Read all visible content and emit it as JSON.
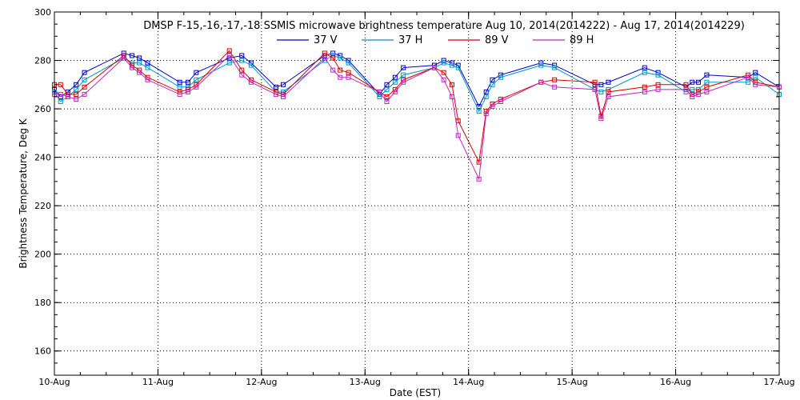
{
  "chart_data": {
    "type": "line",
    "title": "DMSP F-15,-16,-17,-18 SSMIS microwave brightness temperature Aug 10, 2014(2014222) - Aug 17, 2014(2014229)",
    "xlabel": "Date (EST)",
    "ylabel": "Brightness Temperature, Deg K",
    "ylim": [
      150,
      300
    ],
    "xlim": [
      0,
      7
    ],
    "yticks": [
      160,
      180,
      200,
      220,
      240,
      260,
      280,
      300
    ],
    "xticks": [
      {
        "value": 0,
        "label": "10-Aug"
      },
      {
        "value": 1,
        "label": "11-Aug"
      },
      {
        "value": 2,
        "label": "12-Aug"
      },
      {
        "value": 3,
        "label": "13-Aug"
      },
      {
        "value": 4,
        "label": "14-Aug"
      },
      {
        "value": 5,
        "label": "15-Aug"
      },
      {
        "value": 6,
        "label": "16-Aug"
      },
      {
        "value": 7,
        "label": "17-Aug"
      }
    ],
    "grid": true,
    "legend_position": "top",
    "series": [
      {
        "name": "37 V",
        "color": "#0000c8",
        "points": [
          [
            0.0,
            268
          ],
          [
            0.06,
            265
          ],
          [
            0.13,
            267
          ],
          [
            0.21,
            270
          ],
          [
            0.29,
            275
          ],
          [
            0.67,
            283
          ],
          [
            0.75,
            282
          ],
          [
            0.82,
            281
          ],
          [
            0.9,
            279
          ],
          [
            1.21,
            271
          ],
          [
            1.29,
            271
          ],
          [
            1.37,
            275
          ],
          [
            1.69,
            281
          ],
          [
            1.81,
            282
          ],
          [
            1.9,
            279
          ],
          [
            2.14,
            269
          ],
          [
            2.21,
            270
          ],
          [
            2.61,
            282
          ],
          [
            2.69,
            283
          ],
          [
            2.76,
            282
          ],
          [
            2.84,
            280
          ],
          [
            3.14,
            266
          ],
          [
            3.21,
            270
          ],
          [
            3.29,
            273
          ],
          [
            3.37,
            277
          ],
          [
            3.67,
            278
          ],
          [
            3.76,
            280
          ],
          [
            3.84,
            279
          ],
          [
            3.9,
            278
          ],
          [
            4.1,
            261
          ],
          [
            4.17,
            267
          ],
          [
            4.23,
            272
          ],
          [
            4.31,
            274
          ],
          [
            4.7,
            279
          ],
          [
            4.83,
            278
          ],
          [
            5.22,
            270
          ],
          [
            5.28,
            270
          ],
          [
            5.35,
            271
          ],
          [
            5.7,
            277
          ],
          [
            5.83,
            275
          ],
          [
            6.1,
            269
          ],
          [
            6.16,
            271
          ],
          [
            6.22,
            271
          ],
          [
            6.3,
            274
          ],
          [
            6.7,
            273
          ],
          [
            6.77,
            275
          ],
          [
            7.0,
            269
          ]
        ]
      },
      {
        "name": "37 H",
        "color": "#0096c8",
        "points": [
          [
            0.0,
            267
          ],
          [
            0.06,
            263
          ],
          [
            0.13,
            265
          ],
          [
            0.21,
            268
          ],
          [
            0.29,
            272
          ],
          [
            0.67,
            281
          ],
          [
            0.75,
            279
          ],
          [
            0.82,
            279
          ],
          [
            0.9,
            277
          ],
          [
            1.21,
            269
          ],
          [
            1.29,
            269
          ],
          [
            1.37,
            272
          ],
          [
            1.69,
            279
          ],
          [
            1.81,
            280
          ],
          [
            1.9,
            278
          ],
          [
            2.14,
            267
          ],
          [
            2.21,
            267
          ],
          [
            2.61,
            280
          ],
          [
            2.69,
            282
          ],
          [
            2.76,
            281
          ],
          [
            2.84,
            279
          ],
          [
            3.14,
            265
          ],
          [
            3.21,
            268
          ],
          [
            3.29,
            271
          ],
          [
            3.37,
            274
          ],
          [
            3.67,
            277
          ],
          [
            3.76,
            279
          ],
          [
            3.84,
            278
          ],
          [
            3.9,
            277
          ],
          [
            4.1,
            259
          ],
          [
            4.17,
            265
          ],
          [
            4.23,
            270
          ],
          [
            4.31,
            273
          ],
          [
            4.7,
            278
          ],
          [
            4.83,
            277
          ],
          [
            5.22,
            268
          ],
          [
            5.28,
            267
          ],
          [
            5.35,
            268
          ],
          [
            5.7,
            275
          ],
          [
            5.83,
            274
          ],
          [
            6.1,
            267
          ],
          [
            6.16,
            268
          ],
          [
            6.22,
            268
          ],
          [
            6.3,
            271
          ],
          [
            6.7,
            271
          ],
          [
            6.77,
            273
          ],
          [
            7.0,
            266
          ]
        ]
      },
      {
        "name": "89 V",
        "color": "#dc0000",
        "points": [
          [
            0.0,
            270
          ],
          [
            0.06,
            270
          ],
          [
            0.13,
            266
          ],
          [
            0.21,
            266
          ],
          [
            0.29,
            269
          ],
          [
            0.67,
            282
          ],
          [
            0.75,
            278
          ],
          [
            0.82,
            276
          ],
          [
            0.9,
            273
          ],
          [
            1.21,
            267
          ],
          [
            1.29,
            268
          ],
          [
            1.37,
            270
          ],
          [
            1.69,
            284
          ],
          [
            1.81,
            276
          ],
          [
            1.9,
            272
          ],
          [
            2.14,
            267
          ],
          [
            2.21,
            266
          ],
          [
            2.61,
            283
          ],
          [
            2.69,
            281
          ],
          [
            2.76,
            276
          ],
          [
            2.84,
            275
          ],
          [
            3.14,
            267
          ],
          [
            3.21,
            265
          ],
          [
            3.29,
            268
          ],
          [
            3.37,
            272
          ],
          [
            3.67,
            277
          ],
          [
            3.76,
            275
          ],
          [
            3.84,
            270
          ],
          [
            3.9,
            255
          ],
          [
            4.1,
            238
          ],
          [
            4.17,
            259
          ],
          [
            4.23,
            262
          ],
          [
            4.31,
            264
          ],
          [
            4.7,
            271
          ],
          [
            4.83,
            272
          ],
          [
            5.22,
            271
          ],
          [
            5.28,
            257
          ],
          [
            5.35,
            267
          ],
          [
            5.7,
            269
          ],
          [
            5.83,
            270
          ],
          [
            6.1,
            270
          ],
          [
            6.16,
            266
          ],
          [
            6.22,
            267
          ],
          [
            6.3,
            269
          ],
          [
            6.7,
            274
          ],
          [
            6.77,
            271
          ],
          [
            7.0,
            269
          ]
        ]
      },
      {
        "name": "89 H",
        "color": "#be28be",
        "points": [
          [
            0.0,
            266
          ],
          [
            0.06,
            266
          ],
          [
            0.13,
            265
          ],
          [
            0.21,
            264
          ],
          [
            0.29,
            266
          ],
          [
            0.67,
            281
          ],
          [
            0.75,
            277
          ],
          [
            0.82,
            275
          ],
          [
            0.9,
            272
          ],
          [
            1.21,
            266
          ],
          [
            1.29,
            267
          ],
          [
            1.37,
            269
          ],
          [
            1.69,
            282
          ],
          [
            1.81,
            274
          ],
          [
            1.9,
            271
          ],
          [
            2.14,
            266
          ],
          [
            2.21,
            265
          ],
          [
            2.61,
            281
          ],
          [
            2.69,
            276
          ],
          [
            2.76,
            273
          ],
          [
            2.84,
            273
          ],
          [
            3.14,
            267
          ],
          [
            3.21,
            263
          ],
          [
            3.29,
            267
          ],
          [
            3.37,
            271
          ],
          [
            3.67,
            277
          ],
          [
            3.76,
            272
          ],
          [
            3.84,
            265
          ],
          [
            3.9,
            249
          ],
          [
            4.1,
            231
          ],
          [
            4.17,
            258
          ],
          [
            4.23,
            261
          ],
          [
            4.31,
            263
          ],
          [
            4.7,
            271
          ],
          [
            4.83,
            269
          ],
          [
            5.22,
            268
          ],
          [
            5.28,
            256
          ],
          [
            5.35,
            265
          ],
          [
            5.7,
            267
          ],
          [
            5.83,
            268
          ],
          [
            6.1,
            268
          ],
          [
            6.16,
            265
          ],
          [
            6.22,
            266
          ],
          [
            6.3,
            267
          ],
          [
            6.7,
            273
          ],
          [
            6.77,
            270
          ],
          [
            7.0,
            269
          ]
        ]
      }
    ]
  }
}
